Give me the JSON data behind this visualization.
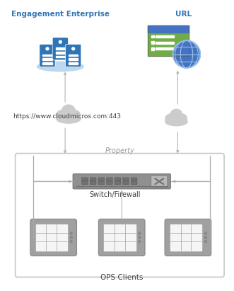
{
  "bg_color": "#ffffff",
  "engagement_label": "Engagement Enterprise",
  "url_label": "URL",
  "cloud_url": "https://www.cloudmicros.com:443",
  "property_label": "Property",
  "switch_label": "Switch/Firewall",
  "ops_label": "OPS Clients",
  "arrow_color": "#aaaaaa",
  "server_blue": "#2e75b6",
  "server_light_blue": "#bdd7ee",
  "green_app": "#70ad47",
  "green_dark": "#375623",
  "green_top_bar": "#4472c4",
  "globe_blue": "#4472c4",
  "globe_light": "#9dc3e6",
  "cloud_gray": "#c8c8c8",
  "switch_gray": "#909090",
  "switch_dark": "#707070",
  "monitor_gray": "#a0a0a0",
  "monitor_dark": "#888888",
  "text_dark": "#404040",
  "text_blue": "#2e75b6",
  "text_property": "#999999",
  "prop_box_edge": "#c8c8c8"
}
